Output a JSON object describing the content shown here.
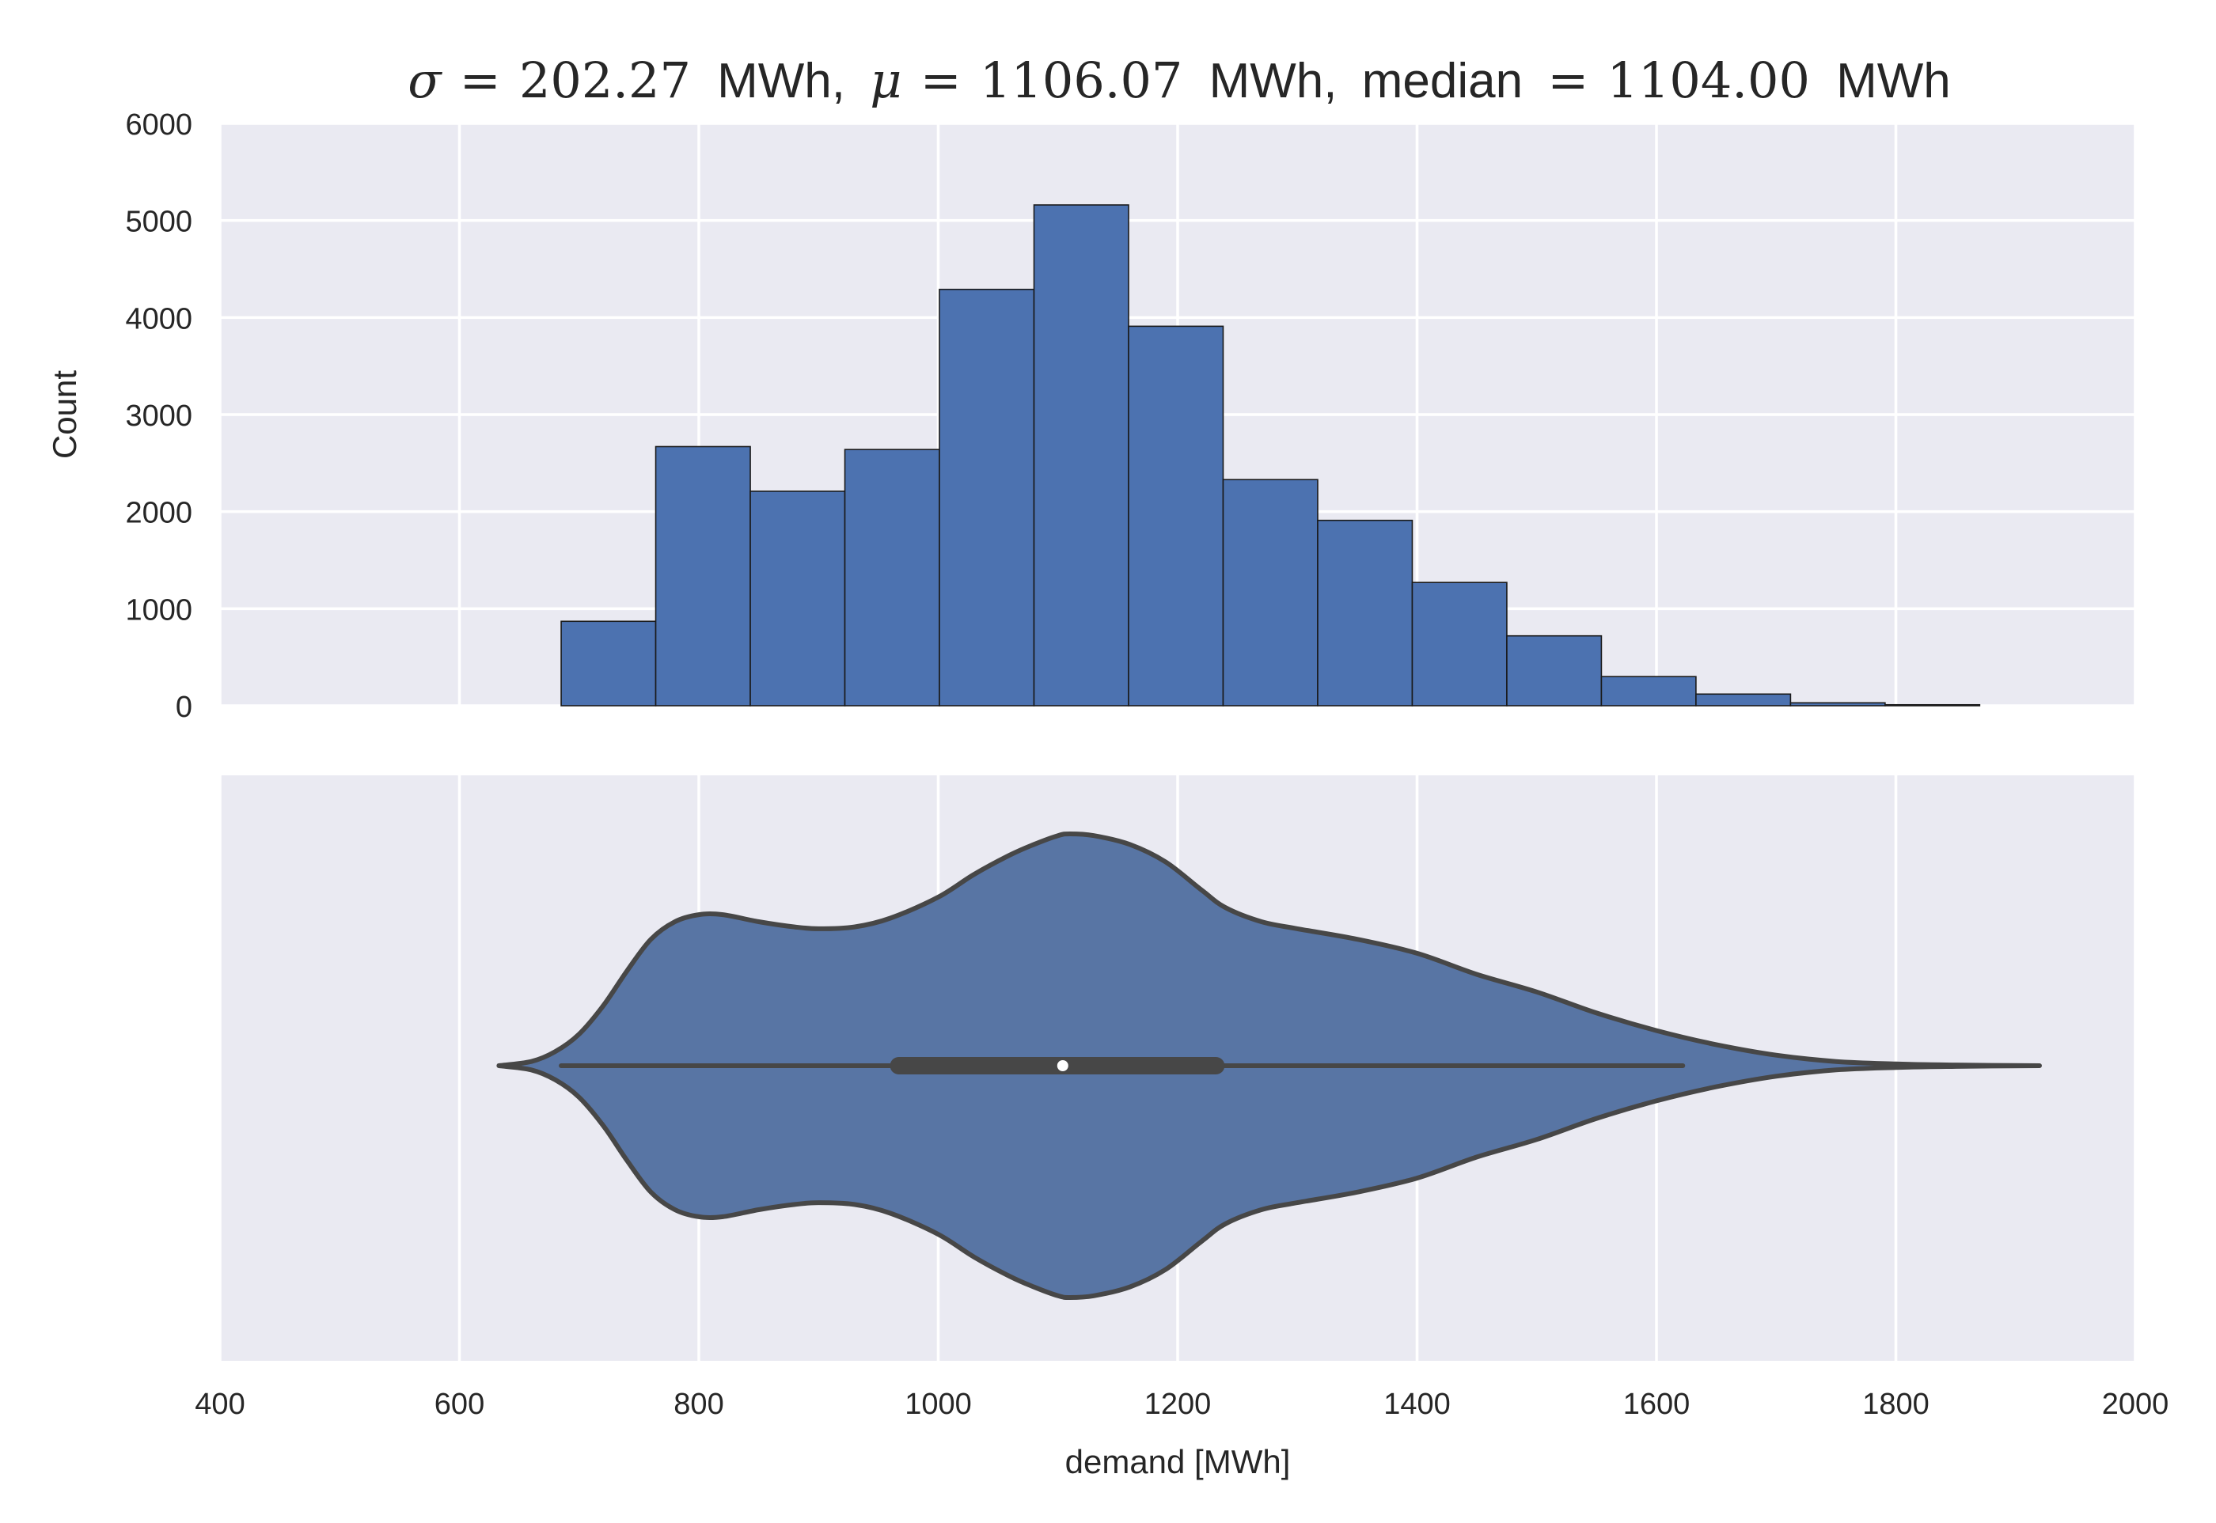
{
  "chart_data": [
    {
      "type": "bar",
      "title": {
        "sigma_symbol": "σ",
        "sigma_value": "202.27",
        "mu_symbol": "μ",
        "mu_value": "1106.07",
        "median_label": "median",
        "median_value": "1104.00",
        "unit": "MWh",
        "equals": "=",
        "separator": ","
      },
      "xlabel": "",
      "ylabel": "Count",
      "xlim": [
        400,
        2000
      ],
      "ylim": [
        0,
        6000
      ],
      "y_ticks": [
        0,
        1000,
        2000,
        3000,
        4000,
        5000,
        6000
      ],
      "x_ticks": [
        400,
        600,
        800,
        1000,
        1200,
        1400,
        1600,
        1800,
        2000
      ],
      "show_x_tick_labels": false,
      "grid": true,
      "bins": [
        {
          "x0": 685,
          "x1": 764,
          "count": 870
        },
        {
          "x0": 764,
          "x1": 843,
          "count": 2670
        },
        {
          "x0": 843,
          "x1": 922,
          "count": 2210
        },
        {
          "x0": 922,
          "x1": 1001,
          "count": 2640
        },
        {
          "x0": 1001,
          "x1": 1080,
          "count": 4290
        },
        {
          "x0": 1080,
          "x1": 1159,
          "count": 5160
        },
        {
          "x0": 1159,
          "x1": 1238,
          "count": 3910
        },
        {
          "x0": 1238,
          "x1": 1317,
          "count": 2330
        },
        {
          "x0": 1317,
          "x1": 1396,
          "count": 1910
        },
        {
          "x0": 1396,
          "x1": 1475,
          "count": 1270
        },
        {
          "x0": 1475,
          "x1": 1554,
          "count": 720
        },
        {
          "x0": 1554,
          "x1": 1633,
          "count": 300
        },
        {
          "x0": 1633,
          "x1": 1712,
          "count": 120
        },
        {
          "x0": 1712,
          "x1": 1791,
          "count": 30
        },
        {
          "x0": 1791,
          "x1": 1870,
          "count": 10
        }
      ]
    },
    {
      "type": "violin",
      "xlabel": "demand [MWh]",
      "ylabel": "",
      "xlim": [
        400,
        2000
      ],
      "x_ticks": [
        400,
        600,
        800,
        1000,
        1200,
        1400,
        1600,
        1800,
        2000
      ],
      "grid": true,
      "density_profile": [
        [
          633,
          0.0
        ],
        [
          660,
          0.012
        ],
        [
          680,
          0.04
        ],
        [
          700,
          0.09
        ],
        [
          720,
          0.17
        ],
        [
          740,
          0.27
        ],
        [
          760,
          0.36
        ],
        [
          780,
          0.41
        ],
        [
          800,
          0.43
        ],
        [
          820,
          0.43
        ],
        [
          850,
          0.41
        ],
        [
          880,
          0.395
        ],
        [
          900,
          0.39
        ],
        [
          930,
          0.395
        ],
        [
          960,
          0.42
        ],
        [
          1000,
          0.48
        ],
        [
          1030,
          0.545
        ],
        [
          1060,
          0.6
        ],
        [
          1080,
          0.63
        ],
        [
          1100,
          0.655
        ],
        [
          1110,
          0.66
        ],
        [
          1130,
          0.655
        ],
        [
          1160,
          0.63
        ],
        [
          1190,
          0.58
        ],
        [
          1220,
          0.5
        ],
        [
          1240,
          0.45
        ],
        [
          1270,
          0.41
        ],
        [
          1300,
          0.39
        ],
        [
          1350,
          0.36
        ],
        [
          1400,
          0.32
        ],
        [
          1450,
          0.26
        ],
        [
          1500,
          0.21
        ],
        [
          1550,
          0.15
        ],
        [
          1600,
          0.1
        ],
        [
          1650,
          0.06
        ],
        [
          1700,
          0.03
        ],
        [
          1750,
          0.012
        ],
        [
          1800,
          0.005
        ],
        [
          1850,
          0.002
        ],
        [
          1920,
          0.0
        ]
      ],
      "whisker_low": 685,
      "whisker_high": 1622,
      "q1": 967,
      "q3": 1232,
      "median": 1104,
      "fill_color": "#5875a4",
      "line_color": "#474747"
    }
  ],
  "colors": {
    "axes_bg": "#eaeaf2",
    "grid": "#ffffff",
    "bar_fill": "#4c72b0",
    "bar_edge": "#1a1a1a",
    "text": "#262626"
  }
}
